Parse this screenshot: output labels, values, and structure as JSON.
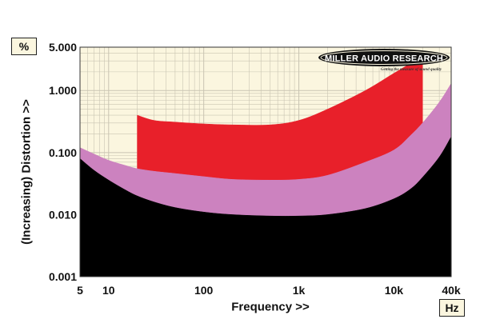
{
  "chart_data": {
    "type": "area",
    "xlabel": "Frequency >>",
    "ylabel": "(Increasing) Distortion >>",
    "x_unit": "Hz",
    "y_unit": "%",
    "x_scale": "log",
    "y_scale": "log",
    "xlim": [
      5,
      40000
    ],
    "ylim": [
      0.001,
      5
    ],
    "x_ticks": [
      {
        "value": 5,
        "label": "5"
      },
      {
        "value": 10,
        "label": "10"
      },
      {
        "value": 100,
        "label": "100"
      },
      {
        "value": 1000,
        "label": "1k"
      },
      {
        "value": 10000,
        "label": "10k"
      },
      {
        "value": 40000,
        "label": "40k"
      }
    ],
    "y_ticks": [
      {
        "value": 0.001,
        "label": "0.001"
      },
      {
        "value": 0.01,
        "label": "0.010"
      },
      {
        "value": 0.1,
        "label": "0.100"
      },
      {
        "value": 1,
        "label": "1.000"
      },
      {
        "value": 5,
        "label": "5.000"
      }
    ],
    "grid": true,
    "bands": [
      {
        "color": "#e8202a",
        "x": [
          20,
          30,
          50,
          100,
          200,
          500,
          1000,
          2000,
          5000,
          10000,
          15000,
          20000
        ],
        "upper": [
          0.4,
          0.33,
          0.31,
          0.29,
          0.28,
          0.28,
          0.33,
          0.5,
          1.0,
          1.9,
          2.7,
          3.0
        ],
        "lower": [
          0.055,
          0.05,
          0.046,
          0.041,
          0.037,
          0.036,
          0.037,
          0.043,
          0.07,
          0.11,
          0.19,
          0.3
        ]
      },
      {
        "color": "#cc82bf",
        "x": [
          5,
          7,
          10,
          15,
          20,
          30,
          50,
          100,
          200,
          500,
          1000,
          2000,
          5000,
          10000,
          15000,
          20000,
          30000,
          40000
        ],
        "upper": [
          0.12,
          0.095,
          0.075,
          0.062,
          0.055,
          0.05,
          0.046,
          0.041,
          0.037,
          0.036,
          0.037,
          0.043,
          0.07,
          0.11,
          0.19,
          0.3,
          0.65,
          1.3
        ],
        "lower": [
          0.08,
          0.052,
          0.036,
          0.025,
          0.02,
          0.016,
          0.013,
          0.011,
          0.01,
          0.0095,
          0.0095,
          0.01,
          0.0125,
          0.018,
          0.026,
          0.04,
          0.085,
          0.18
        ]
      },
      {
        "color": "#000000",
        "x": [
          5,
          7,
          10,
          15,
          20,
          30,
          50,
          100,
          200,
          500,
          1000,
          2000,
          5000,
          10000,
          15000,
          20000,
          30000,
          40000
        ],
        "upper": [
          0.08,
          0.052,
          0.036,
          0.025,
          0.02,
          0.016,
          0.013,
          0.011,
          0.01,
          0.0095,
          0.0095,
          0.01,
          0.0125,
          0.018,
          0.026,
          0.04,
          0.085,
          0.18
        ],
        "lower": [
          0.001,
          0.001,
          0.001,
          0.001,
          0.001,
          0.001,
          0.001,
          0.001,
          0.001,
          0.001,
          0.001,
          0.001,
          0.001,
          0.001,
          0.001,
          0.001,
          0.001,
          0.001
        ]
      }
    ],
    "colors": {
      "background": "#fbf6df",
      "grid": "#c9c4b2",
      "red": "#e8202a",
      "pink": "#cc82bf",
      "black": "#000000"
    }
  },
  "logo": {
    "name": "MILLER AUDIO RESEARCH",
    "tagline": "Getting the measure of sound quality"
  }
}
